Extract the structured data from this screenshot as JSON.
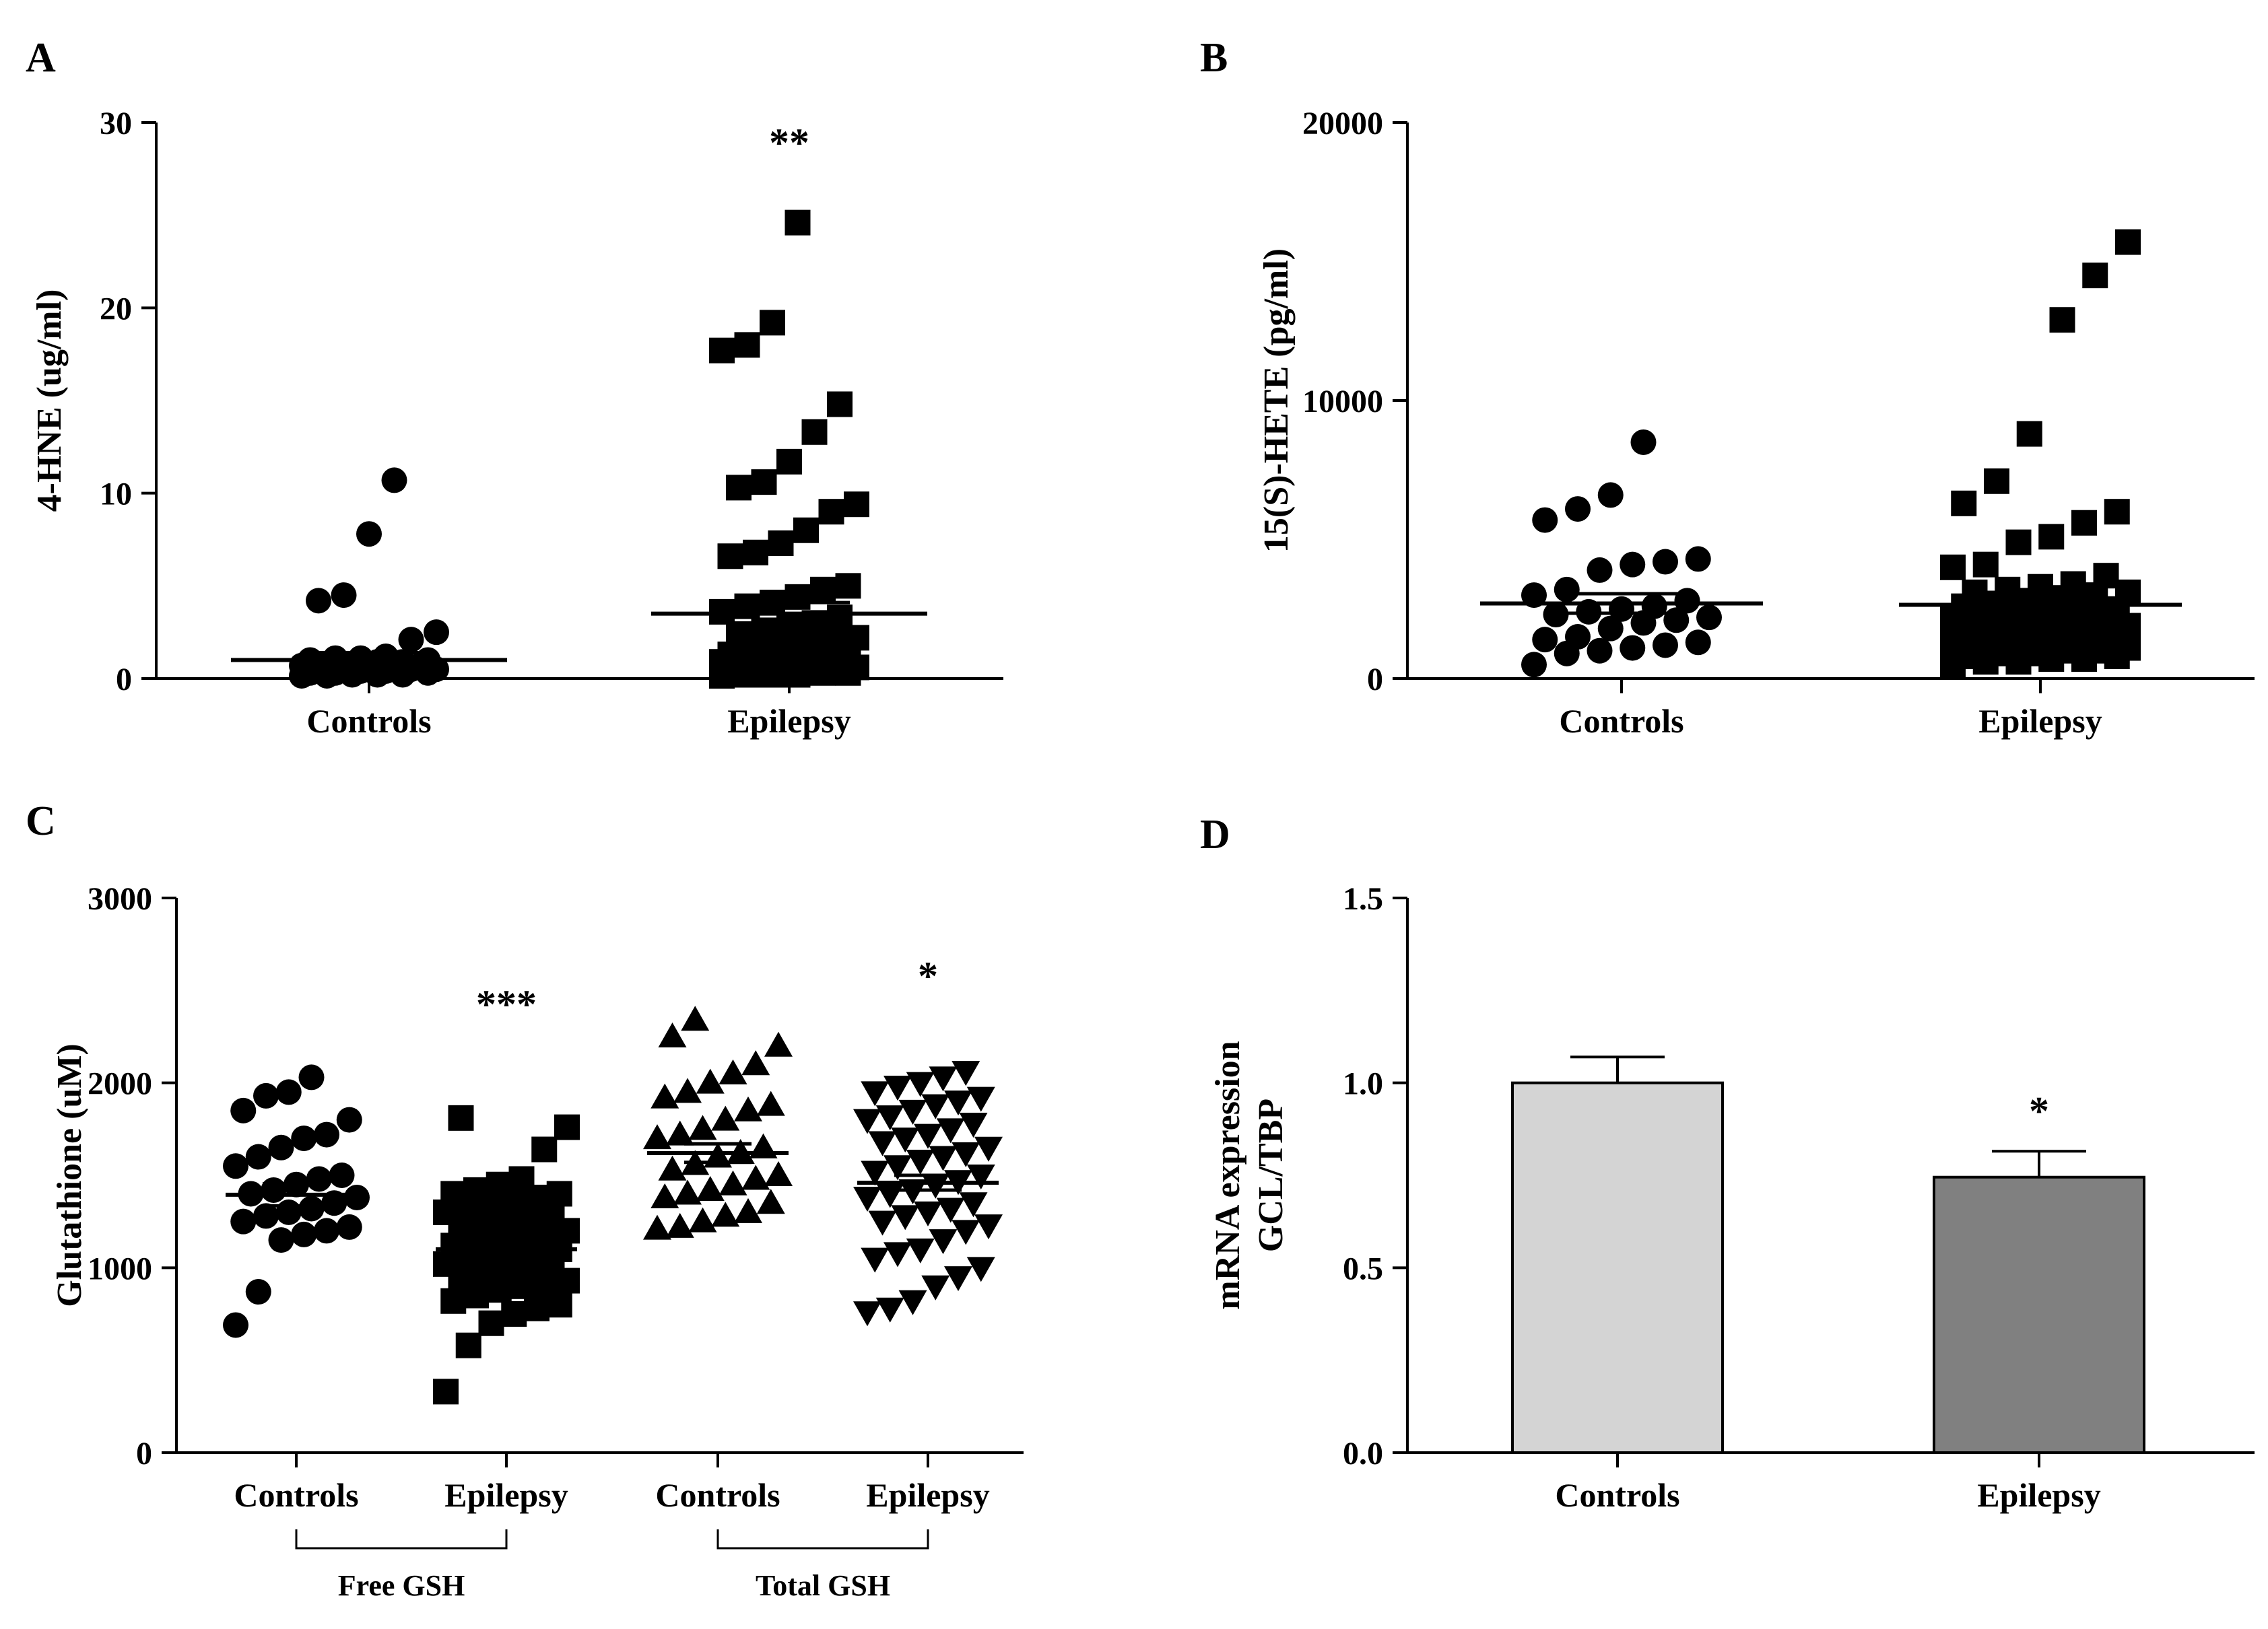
{
  "chart_data": [
    {
      "panel": "A",
      "type": "scatter",
      "ylabel": "4-HNE (ug/ml)",
      "ylim": [
        0,
        30
      ],
      "yticks": [
        "0",
        "10",
        "20",
        "30"
      ],
      "categories": [
        "Controls",
        "Epilepsy"
      ],
      "markers": [
        "circle",
        "square"
      ],
      "points": [
        [
          0.1,
          0.2,
          0.3,
          0.4,
          0.5,
          0.6,
          0.7,
          0.8,
          0.9,
          1.0,
          1.1,
          1.2,
          0.2,
          0.3,
          0.5,
          0.6,
          0.8,
          1.0,
          0.1,
          0.4,
          0.7,
          0.9,
          1.1,
          0.3,
          0.6,
          0.2,
          0.5,
          2.1,
          2.5,
          4.2,
          4.5,
          7.8,
          10.7
        ],
        [
          0.1,
          0.2,
          0.3,
          0.4,
          0.5,
          0.6,
          0.7,
          0.8,
          0.9,
          1.0,
          1.2,
          1.5,
          0.2,
          0.4,
          0.6,
          0.8,
          1.0,
          1.3,
          1.6,
          2.0,
          2.4,
          2.8,
          3.0,
          3.3,
          3.6,
          3.9,
          4.1,
          4.4,
          4.8,
          5.0,
          0.3,
          0.5,
          0.7,
          0.9,
          1.1,
          0.2,
          0.6,
          1.8,
          2.2,
          2.6,
          6.6,
          6.8,
          7.3,
          8.0,
          9.0,
          9.4,
          10.3,
          10.6,
          11.7,
          13.3,
          14.8,
          17.7,
          18.0,
          19.2,
          24.6
        ]
      ],
      "mean": [
        1.0,
        3.5
      ],
      "sem": [
        0.4,
        0.6
      ],
      "annotations": [
        {
          "category": "Epilepsy",
          "text": "**"
        }
      ]
    },
    {
      "panel": "B",
      "type": "scatter",
      "ylabel": "15(S)-HETE (pg/ml)",
      "ylim": [
        0,
        20000
      ],
      "yticks": [
        "0",
        "10000",
        "20000"
      ],
      "categories": [
        "Controls",
        "Epilepsy"
      ],
      "markers": [
        "circle",
        "square"
      ],
      "points": [
        [
          500,
          900,
          1000,
          1100,
          1200,
          1300,
          1400,
          1500,
          1800,
          2000,
          2100,
          2200,
          2300,
          2400,
          2500,
          2600,
          2800,
          3000,
          3200,
          3900,
          4100,
          4200,
          4300,
          5700,
          6100,
          6600,
          8500
        ],
        [
          500,
          600,
          700,
          800,
          900,
          1000,
          1100,
          1200,
          1300,
          1400,
          1500,
          1600,
          1700,
          1800,
          1900,
          2000,
          2100,
          2200,
          2300,
          2400,
          2500,
          2600,
          2700,
          2800,
          2900,
          3000,
          3100,
          3200,
          3300,
          3400,
          600,
          800,
          1000,
          1200,
          1400,
          1600,
          1800,
          2000,
          2200,
          2400,
          700,
          900,
          1100,
          1300,
          1500,
          1700,
          1900,
          2100,
          2500,
          3100,
          3700,
          4000,
          4100,
          4900,
          5100,
          5600,
          6000,
          6300,
          7100,
          8800,
          12900,
          14500,
          15700
        ]
      ],
      "mean": [
        2700,
        2650
      ],
      "sem": [
        350,
        300
      ],
      "annotations": []
    },
    {
      "panel": "C",
      "type": "scatter",
      "ylabel": "Glutathione (uM)",
      "ylim": [
        0,
        3000
      ],
      "yticks": [
        "0",
        "1000",
        "2000",
        "3000"
      ],
      "categories": [
        "Controls",
        "Epilepsy",
        "Controls",
        "Epilepsy"
      ],
      "groups": [
        {
          "label": "Free GSH",
          "categories": [
            0,
            1
          ]
        },
        {
          "label": "Total GSH",
          "categories": [
            2,
            3
          ]
        }
      ],
      "markers": [
        "circle",
        "square",
        "triangle-up",
        "triangle-down"
      ],
      "points": [
        [
          690,
          870,
          1150,
          1180,
          1200,
          1220,
          1250,
          1280,
          1300,
          1320,
          1350,
          1380,
          1400,
          1420,
          1450,
          1480,
          1500,
          1550,
          1600,
          1650,
          1700,
          1720,
          1800,
          1850,
          1930,
          1950,
          2030
        ],
        [
          330,
          580,
          700,
          750,
          780,
          820,
          850,
          880,
          900,
          930,
          950,
          980,
          1000,
          1020,
          1050,
          1080,
          1100,
          1120,
          1150,
          1180,
          1200,
          1230,
          1250,
          1280,
          1300,
          1320,
          1350,
          1380,
          1400,
          1420,
          1450,
          1480,
          800,
          900,
          1000,
          1100,
          1200,
          1300,
          1400,
          960,
          1060,
          1160,
          1260,
          1360,
          1640,
          1760,
          1810
        ],
        [
          1210,
          1220,
          1250,
          1280,
          1300,
          1350,
          1380,
          1400,
          1420,
          1450,
          1480,
          1500,
          1530,
          1560,
          1600,
          1620,
          1650,
          1700,
          1720,
          1750,
          1800,
          1850,
          1880,
          1920,
          1950,
          2000,
          2050,
          2100,
          2200,
          2250,
          2340
        ],
        [
          760,
          780,
          820,
          900,
          950,
          1000,
          1050,
          1080,
          1100,
          1150,
          1200,
          1230,
          1250,
          1280,
          1300,
          1320,
          1350,
          1380,
          1400,
          1420,
          1450,
          1470,
          1500,
          1520,
          1550,
          1580,
          1600,
          1620,
          1650,
          1680,
          1700,
          1720,
          1750,
          1780,
          1800,
          1820,
          1850,
          1880,
          1900,
          1920,
          1950,
          1980,
          2000,
          2030,
          2060
        ]
      ],
      "mean": [
        1395,
        1100,
        1620,
        1460
      ],
      "sem": [
        60,
        40,
        50,
        40
      ],
      "annotations": [
        {
          "category": 1,
          "text": "***"
        },
        {
          "category": 3,
          "text": "*"
        }
      ]
    },
    {
      "panel": "D",
      "type": "bar",
      "ylabel": [
        "mRNA expression",
        "GCL/TBP"
      ],
      "ylim": [
        0,
        1.5
      ],
      "yticks": [
        "0.0",
        "0.5",
        "1.0",
        "1.5"
      ],
      "categories": [
        "Controls",
        "Epilepsy"
      ],
      "values": [
        1.0,
        0.745
      ],
      "errors": [
        0.07,
        0.07
      ],
      "colors": [
        "#d4d4d4",
        "#808080"
      ],
      "annotations": [
        {
          "category": "Epilepsy",
          "text": "*"
        }
      ]
    }
  ]
}
